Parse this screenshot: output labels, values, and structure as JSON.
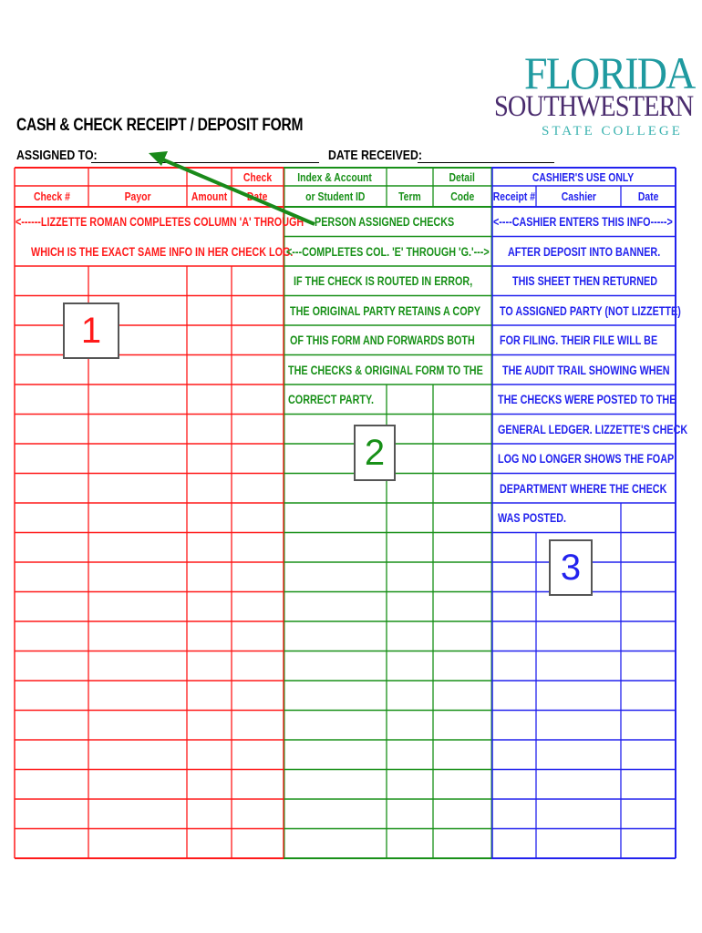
{
  "logo": {
    "line1": "FLORIDA",
    "line2": "SOUTHWESTERN",
    "line3": "STATE COLLEGE"
  },
  "form": {
    "title": "CASH & CHECK RECEIPT / DEPOSIT FORM",
    "assigned_to_label": "ASSIGNED TO:",
    "assigned_to_value": "",
    "date_received_label": "DATE RECEIVED:",
    "date_received_value": ""
  },
  "colors": {
    "red": "#ff1a1a",
    "green": "#189018",
    "blue": "#2222ee",
    "arrow": "#1a8a1a"
  },
  "headers": {
    "check_no": "Check #",
    "payor": "Payor",
    "amount": "Amount",
    "check_date_1": "Check",
    "check_date_2": "Date",
    "index_1": "Index & Account",
    "index_2": "or Student ID",
    "term": "Term",
    "detail_1": "Detail",
    "detail_2": "Code",
    "cashier_use": "CASHIER'S USE ONLY",
    "receipt": "Receipt #",
    "cashier": "Cashier",
    "date": "Date"
  },
  "notes": {
    "red": [
      "<------LIZZETTE ROMAN COMPLETES COLUMN 'A' THROUGH",
      "WHICH IS THE EXACT SAME INFO IN HER CHECK LOG."
    ],
    "green": [
      "PERSON ASSIGNED CHECKS",
      "<---COMPLETES COL. 'E' THROUGH 'G.'--->",
      "IF THE CHECK IS ROUTED IN ERROR,",
      "THE ORIGINAL PARTY RETAINS A COPY",
      "OF THIS FORM AND FORWARDS BOTH",
      "THE CHECKS & ORIGINAL FORM TO THE",
      "CORRECT PARTY."
    ],
    "blue": [
      "<----CASHIER ENTERS THIS INFO----->",
      "AFTER DEPOSIT INTO BANNER.",
      "THIS SHEET THEN RETURNED",
      "TO ASSIGNED PARTY (NOT LIZZETTE)",
      "FOR FILING.  THEIR FILE WILL BE",
      "THE AUDIT TRAIL SHOWING WHEN",
      "THE CHECKS WERE POSTED TO THE",
      "GENERAL LEDGER.  LIZZETTE'S CHECK",
      "LOG NO LONGER SHOWS THE FOAP",
      "DEPARTMENT WHERE THE CHECK",
      "WAS POSTED."
    ]
  },
  "callouts": {
    "one": "1",
    "two": "2",
    "three": "3"
  }
}
